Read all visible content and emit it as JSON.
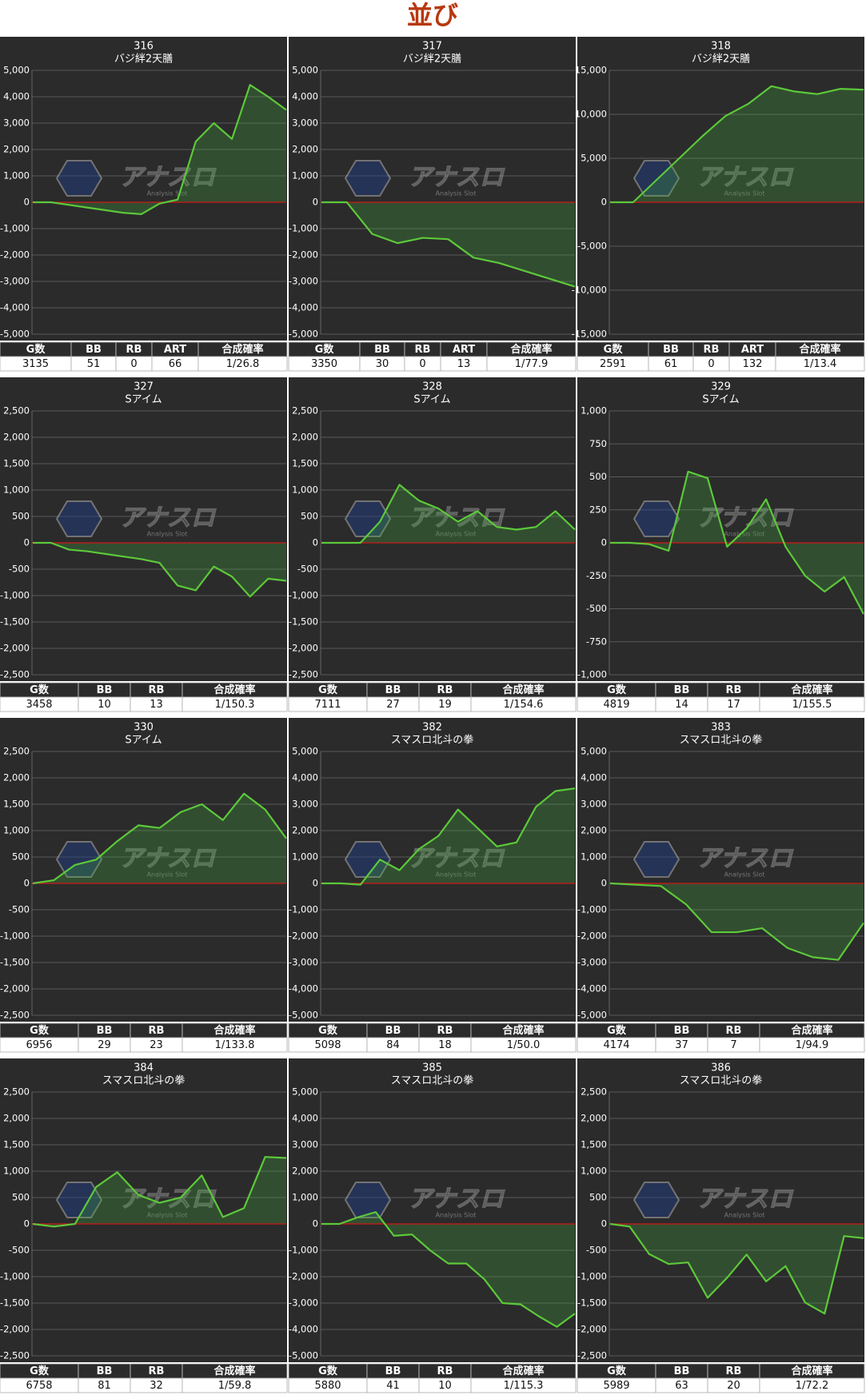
{
  "title": "並び",
  "watermark": {
    "name": "アナスロ",
    "tagline": "Analysis Slot"
  },
  "chart_data": [
    {
      "type": "line",
      "title": "316",
      "subtitle": "バジ絆2天膳",
      "values": [
        0,
        0,
        -100,
        -200,
        -300,
        -400,
        -450,
        -50,
        100,
        2300,
        3000,
        2400,
        4450,
        4000,
        3500
      ],
      "ylim": [
        -5000,
        5000
      ],
      "yticks": [
        {
          "value": 5000,
          "label": "5,000"
        },
        {
          "value": 4000,
          "label": "4,000"
        },
        {
          "value": 3000,
          "label": "3,000"
        },
        {
          "value": 2000,
          "label": "2,000"
        },
        {
          "value": 1000,
          "label": "1,000"
        },
        0,
        {
          "value": -1000,
          "label": "-1,000"
        },
        {
          "value": -2000,
          "label": "-2,000"
        },
        {
          "value": -3000,
          "label": "-3,000"
        },
        {
          "value": -4000,
          "label": "-4,000"
        },
        {
          "value": -5000,
          "label": "-5,000"
        }
      ],
      "color": "#5cc93a",
      "grid": true,
      "table": {
        "headers": [
          "G数",
          "BB",
          "RB",
          "ART",
          "合成確率"
        ],
        "row": [
          3135,
          51,
          0,
          66,
          "1/26.8"
        ]
      }
    },
    {
      "type": "line",
      "title": "317",
      "subtitle": "バジ絆2天膳",
      "values": [
        0,
        0,
        -1200,
        -1550,
        -1350,
        -1400,
        -2100,
        -2300,
        -2600,
        -2900,
        -3200
      ],
      "ylim": [
        -5000,
        5000
      ],
      "yticks": [
        {
          "value": 5000,
          "label": "5,000"
        },
        {
          "value": 4000,
          "label": "4,000"
        },
        {
          "value": 3000,
          "label": "3,000"
        },
        {
          "value": 2000,
          "label": "2,000"
        },
        {
          "value": 1000,
          "label": "1,000"
        },
        0,
        {
          "value": -1000,
          "label": "-1,000"
        },
        {
          "value": -2000,
          "label": "-2,000"
        },
        {
          "value": -3000,
          "label": "-3,000"
        },
        {
          "value": -4000,
          "label": "-4,000"
        },
        {
          "value": -5000,
          "label": "-5,000"
        }
      ],
      "color": "#5cc93a",
      "grid": true,
      "table": {
        "headers": [
          "G数",
          "BB",
          "RB",
          "ART",
          "合成確率"
        ],
        "row": [
          3350,
          30,
          0,
          13,
          "1/77.9"
        ]
      }
    },
    {
      "type": "line",
      "title": "318",
      "subtitle": "バジ絆2天膳",
      "values": [
        0,
        0,
        2500,
        5000,
        7500,
        9800,
        11200,
        13200,
        12600,
        12300,
        12900,
        12800
      ],
      "ylim": [
        -15000,
        15000
      ],
      "yticks": [
        {
          "value": 15000,
          "label": "15,000"
        },
        {
          "value": 10000,
          "label": "10,000"
        },
        {
          "value": 5000,
          "label": "5,000"
        },
        0,
        {
          "value": -5000,
          "label": "-5,000"
        },
        {
          "value": -10000,
          "label": "-10,000"
        },
        {
          "value": -15000,
          "label": "-15,000"
        }
      ],
      "color": "#5cc93a",
      "grid": true,
      "table": {
        "headers": [
          "G数",
          "BB",
          "RB",
          "ART",
          "合成確率"
        ],
        "row": [
          2591,
          61,
          0,
          132,
          "1/13.4"
        ]
      }
    },
    {
      "type": "line",
      "title": "327",
      "subtitle": "Sアイム",
      "values": [
        0,
        0,
        -130,
        -160,
        -210,
        -260,
        -310,
        -380,
        -810,
        -900,
        -450,
        -640,
        -1020,
        -680,
        -720
      ],
      "ylim": [
        -2500,
        2500
      ],
      "yticks": [
        {
          "value": 2500,
          "label": "2,500"
        },
        {
          "value": 2000,
          "label": "2,000"
        },
        {
          "value": 1500,
          "label": "1,500"
        },
        {
          "value": 1000,
          "label": "1,000"
        },
        500,
        0,
        -500,
        {
          "value": -1000,
          "label": "-1,000"
        },
        {
          "value": -1500,
          "label": "-1,500"
        },
        {
          "value": -2000,
          "label": "-2,000"
        },
        {
          "value": -2500,
          "label": "-2,500"
        }
      ],
      "color": "#5cc93a",
      "grid": true,
      "table": {
        "headers": [
          "G数",
          "BB",
          "RB",
          "合成確率"
        ],
        "row": [
          3458,
          10,
          13,
          "1/150.3"
        ]
      }
    },
    {
      "type": "line",
      "title": "328",
      "subtitle": "Sアイム",
      "values": [
        0,
        0,
        0,
        400,
        1100,
        800,
        650,
        400,
        600,
        300,
        250,
        300,
        600,
        250
      ],
      "ylim": [
        -2500,
        2500
      ],
      "yticks": [
        {
          "value": 2500,
          "label": "2,500"
        },
        {
          "value": 2000,
          "label": "2,000"
        },
        {
          "value": 1500,
          "label": "1,500"
        },
        {
          "value": 1000,
          "label": "1,000"
        },
        500,
        0,
        -500,
        {
          "value": -1000,
          "label": "-1,000"
        },
        {
          "value": -1500,
          "label": "-1,500"
        },
        {
          "value": -2000,
          "label": "-2,000"
        },
        {
          "value": -2500,
          "label": "-2,500"
        }
      ],
      "color": "#5cc93a",
      "grid": true,
      "table": {
        "headers": [
          "G数",
          "BB",
          "RB",
          "合成確率"
        ],
        "row": [
          7111,
          27,
          19,
          "1/154.6"
        ]
      }
    },
    {
      "type": "line",
      "title": "329",
      "subtitle": "Sアイム",
      "values": [
        0,
        0,
        -10,
        -60,
        540,
        490,
        -30,
        110,
        330,
        -30,
        -250,
        -370,
        -260,
        -540
      ],
      "ylim": [
        -1000,
        1000
      ],
      "yticks": [
        {
          "value": 1000,
          "label": "1,000"
        },
        750,
        500,
        250,
        0,
        -250,
        -500,
        -750,
        {
          "value": -1000,
          "label": "-1,000"
        }
      ],
      "color": "#5cc93a",
      "grid": true,
      "table": {
        "headers": [
          "G数",
          "BB",
          "RB",
          "合成確率"
        ],
        "row": [
          4819,
          14,
          17,
          "1/155.5"
        ]
      }
    },
    {
      "type": "line",
      "title": "330",
      "subtitle": "Sアイム",
      "values": [
        0,
        60,
        350,
        450,
        800,
        1100,
        1050,
        1350,
        1500,
        1200,
        1700,
        1400,
        850
      ],
      "ylim": [
        -2500,
        2500
      ],
      "yticks": [
        {
          "value": 2500,
          "label": "2,500"
        },
        {
          "value": 2000,
          "label": "2,000"
        },
        {
          "value": 1500,
          "label": "1,500"
        },
        {
          "value": 1000,
          "label": "1,000"
        },
        500,
        0,
        -500,
        {
          "value": -1000,
          "label": "-1,000"
        },
        {
          "value": -1500,
          "label": "-1,500"
        },
        {
          "value": -2000,
          "label": "-2,000"
        },
        {
          "value": -2500,
          "label": "-2,500"
        }
      ],
      "color": "#5cc93a",
      "grid": true,
      "table": {
        "headers": [
          "G数",
          "BB",
          "RB",
          "合成確率"
        ],
        "row": [
          6956,
          29,
          23,
          "1/133.8"
        ]
      }
    },
    {
      "type": "line",
      "title": "382",
      "subtitle": "スマスロ北斗の拳",
      "values": [
        0,
        0,
        -50,
        900,
        500,
        1300,
        1800,
        2800,
        2100,
        1400,
        1550,
        2900,
        3500,
        3600
      ],
      "ylim": [
        -5000,
        5000
      ],
      "yticks": [
        {
          "value": 5000,
          "label": "5,000"
        },
        {
          "value": 4000,
          "label": "4,000"
        },
        {
          "value": 3000,
          "label": "3,000"
        },
        {
          "value": 2000,
          "label": "2,000"
        },
        {
          "value": 1000,
          "label": "1,000"
        },
        0,
        {
          "value": -1000,
          "label": "-1,000"
        },
        {
          "value": -2000,
          "label": "-2,000"
        },
        {
          "value": -3000,
          "label": "-3,000"
        },
        {
          "value": -4000,
          "label": "-4,000"
        },
        {
          "value": -5000,
          "label": "-5,000"
        }
      ],
      "color": "#5cc93a",
      "grid": true,
      "table": {
        "headers": [
          "G数",
          "BB",
          "RB",
          "合成確率"
        ],
        "row": [
          5098,
          84,
          18,
          "1/50.0"
        ]
      }
    },
    {
      "type": "line",
      "title": "383",
      "subtitle": "スマスロ北斗の拳",
      "values": [
        0,
        -50,
        -100,
        -800,
        -1850,
        -1850,
        -1700,
        -2450,
        -2800,
        -2900,
        -1500
      ],
      "ylim": [
        -5000,
        5000
      ],
      "yticks": [
        {
          "value": 5000,
          "label": "5,000"
        },
        {
          "value": 4000,
          "label": "4,000"
        },
        {
          "value": 3000,
          "label": "3,000"
        },
        {
          "value": 2000,
          "label": "2,000"
        },
        {
          "value": 1000,
          "label": "1,000"
        },
        0,
        {
          "value": -1000,
          "label": "-1,000"
        },
        {
          "value": -2000,
          "label": "-2,000"
        },
        {
          "value": -3000,
          "label": "-3,000"
        },
        {
          "value": -4000,
          "label": "-4,000"
        },
        {
          "value": -5000,
          "label": "-5,000"
        }
      ],
      "color": "#5cc93a",
      "grid": true,
      "table": {
        "headers": [
          "G数",
          "BB",
          "RB",
          "合成確率"
        ],
        "row": [
          4174,
          37,
          7,
          "1/94.9"
        ]
      }
    },
    {
      "type": "line",
      "title": "384",
      "subtitle": "スマスロ北斗の拳",
      "values": [
        0,
        -50,
        0,
        700,
        980,
        550,
        400,
        500,
        920,
        130,
        300,
        1270,
        1250
      ],
      "ylim": [
        -2500,
        2500
      ],
      "yticks": [
        {
          "value": 2500,
          "label": "2,500"
        },
        {
          "value": 2000,
          "label": "2,000"
        },
        {
          "value": 1500,
          "label": "1,500"
        },
        {
          "value": 1000,
          "label": "1,000"
        },
        500,
        0,
        -500,
        {
          "value": -1000,
          "label": "-1,000"
        },
        {
          "value": -1500,
          "label": "-1,500"
        },
        {
          "value": -2000,
          "label": "-2,000"
        },
        {
          "value": -2500,
          "label": "-2,500"
        }
      ],
      "color": "#5cc93a",
      "grid": true,
      "table": {
        "headers": [
          "G数",
          "BB",
          "RB",
          "合成確率"
        ],
        "row": [
          6758,
          81,
          32,
          "1/59.8"
        ]
      }
    },
    {
      "type": "line",
      "title": "385",
      "subtitle": "スマスロ北斗の拳",
      "values": [
        0,
        0,
        250,
        450,
        -450,
        -400,
        -1000,
        -1500,
        -1500,
        -2100,
        -3000,
        -3050,
        -3500,
        -3900,
        -3400
      ],
      "ylim": [
        -5000,
        5000
      ],
      "yticks": [
        {
          "value": 5000,
          "label": "5,000"
        },
        {
          "value": 4000,
          "label": "4,000"
        },
        {
          "value": 3000,
          "label": "3,000"
        },
        {
          "value": 2000,
          "label": "2,000"
        },
        {
          "value": 1000,
          "label": "1,000"
        },
        0,
        {
          "value": -1000,
          "label": "-1,000"
        },
        {
          "value": -2000,
          "label": "-2,000"
        },
        {
          "value": -3000,
          "label": "-3,000"
        },
        {
          "value": -4000,
          "label": "-4,000"
        },
        {
          "value": -5000,
          "label": "-5,000"
        }
      ],
      "color": "#5cc93a",
      "grid": true,
      "table": {
        "headers": [
          "G数",
          "BB",
          "RB",
          "合成確率"
        ],
        "row": [
          5880,
          41,
          10,
          "1/115.3"
        ]
      }
    },
    {
      "type": "line",
      "title": "386",
      "subtitle": "スマスロ北斗の拳",
      "values": [
        0,
        -50,
        -570,
        -760,
        -730,
        -1400,
        -1020,
        -580,
        -1090,
        -800,
        -1490,
        -1700,
        -230,
        -270
      ],
      "ylim": [
        -2500,
        2500
      ],
      "yticks": [
        {
          "value": 2500,
          "label": "2,500"
        },
        {
          "value": 2000,
          "label": "2,000"
        },
        {
          "value": 1500,
          "label": "1,500"
        },
        {
          "value": 1000,
          "label": "1,000"
        },
        500,
        0,
        -500,
        {
          "value": -1000,
          "label": "-1,000"
        },
        {
          "value": -1500,
          "label": "-1,500"
        },
        {
          "value": -2000,
          "label": "-2,000"
        },
        {
          "value": -2500,
          "label": "-2,500"
        }
      ],
      "color": "#5cc93a",
      "grid": true,
      "table": {
        "headers": [
          "G数",
          "BB",
          "RB",
          "合成確率"
        ],
        "row": [
          5989,
          63,
          20,
          "1/72.2"
        ]
      }
    }
  ]
}
